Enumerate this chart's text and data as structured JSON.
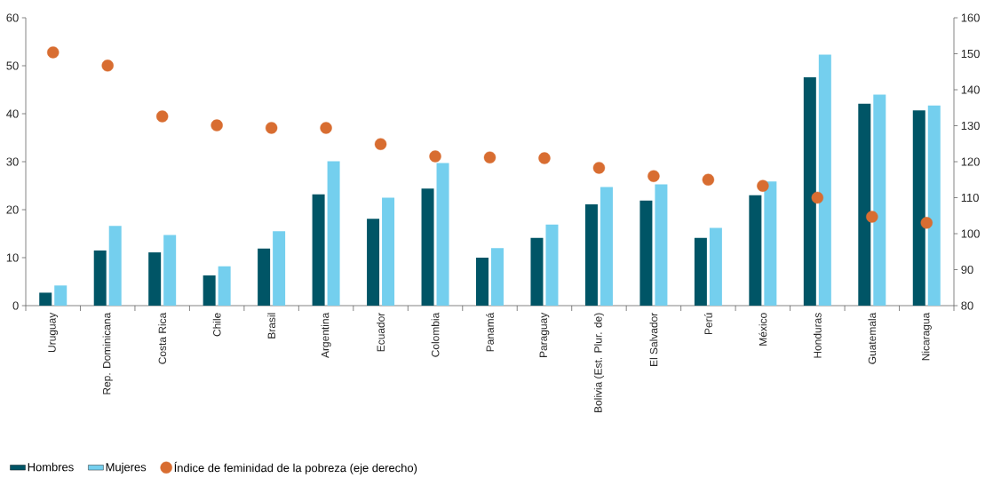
{
  "chart_data": {
    "type": "bar",
    "categories": [
      "Uruguay",
      "Rep. Dominicana",
      "Costa Rica",
      "Chile",
      "Brasil",
      "Argentina",
      "Ecuador",
      "Colombia",
      "Panamá",
      "Paraguay",
      "Bolivia (Est. Plur. de)",
      "El Salvador",
      "Perú",
      "México",
      "Honduras",
      "Guatemala",
      "Nicaragua"
    ],
    "series": [
      {
        "name": "Hombres",
        "color": "#005566",
        "values": [
          2.7,
          11.5,
          11.1,
          6.3,
          11.9,
          23.2,
          18.1,
          24.4,
          10.0,
          14.1,
          21.1,
          21.9,
          14.1,
          23.0,
          47.6,
          42.1,
          40.7
        ]
      },
      {
        "name": "Mujeres",
        "color": "#74cfee",
        "values": [
          4.2,
          16.6,
          14.7,
          8.2,
          15.5,
          30.1,
          22.5,
          29.7,
          12.0,
          16.9,
          24.7,
          25.3,
          16.2,
          25.9,
          52.3,
          44.0,
          41.7
        ]
      },
      {
        "name": "Índice de feminidad de la pobreza (eje derecho)",
        "type": "scatter",
        "axis": "y2",
        "color": "#d86d31",
        "values": [
          150.4,
          146.7,
          132.6,
          130.1,
          129.4,
          129.4,
          124.9,
          121.5,
          121.2,
          121.0,
          118.3,
          116.0,
          115.0,
          113.3,
          110.0,
          104.7,
          103.0
        ]
      }
    ],
    "ylim": [
      0,
      60
    ],
    "yticks": [
      0,
      10,
      20,
      30,
      40,
      50,
      60
    ],
    "y2lim": [
      80,
      160
    ],
    "y2ticks": [
      80,
      90,
      100,
      110,
      120,
      130,
      140,
      150,
      160
    ],
    "legend": "bottom left"
  }
}
